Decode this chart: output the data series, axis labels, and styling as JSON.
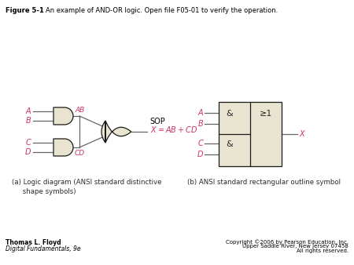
{
  "title_bold": "Figure 5-1",
  "title_normal": "An example of AND-OR logic. Open file F05-01 to verify the operation.",
  "gate_fill": "#e8e4d0",
  "gate_edge": "#1a1a1a",
  "label_color": "#cc3366",
  "text_color": "#2a2a2a",
  "caption_a": "(a) Logic diagram (ANSI standard distinctive\n     shape symbols)",
  "caption_b": "(b) ANSI standard rectangular outline symbol",
  "footer_left_1": "Thomas L. Floyd",
  "footer_left_2": "Digital Fundamentals, 9e",
  "footer_right_1": "Copyright ©2006 by Pearson Education, Inc.",
  "footer_right_2": "Upper Saddle River, New Jersey 07458",
  "footer_right_3": "All rights reserved.",
  "line_color": "#666666"
}
